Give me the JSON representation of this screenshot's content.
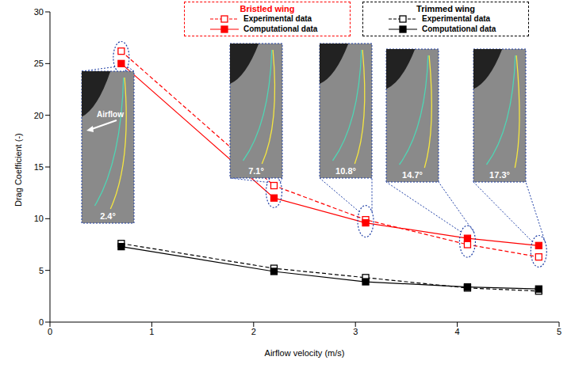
{
  "chart_data": {
    "type": "line",
    "x_label": "Airflow velocity (m/s)",
    "y_label": "Drag Coefficient (-)",
    "x": [
      0.7,
      2.2,
      3.1,
      4.1,
      4.8
    ],
    "xlim": [
      0,
      5
    ],
    "xticks": [
      0,
      1,
      2,
      3,
      4,
      5
    ],
    "ylim": [
      0,
      30
    ],
    "yticks": [
      0,
      5,
      10,
      15,
      20,
      25,
      30
    ],
    "grid": false,
    "series": [
      {
        "name": "Experimental data",
        "group": "Bristled wing",
        "color": "#ff0000",
        "marker": "square_open",
        "line_style": "dashed",
        "values": [
          26.2,
          13.2,
          9.9,
          7.5,
          6.3
        ]
      },
      {
        "name": "Computational data",
        "group": "Bristled wing",
        "color": "#ff0000",
        "marker": "square",
        "line_style": "solid",
        "values": [
          25.0,
          12.0,
          9.6,
          8.1,
          7.4
        ]
      },
      {
        "name": "Experimental data",
        "group": "Trimmed wing",
        "color": "#000000",
        "marker": "square_open",
        "line_style": "dashed",
        "values": [
          7.6,
          5.2,
          4.3,
          3.3,
          3.0
        ]
      },
      {
        "name": "Computational data",
        "group": "Trimmed wing",
        "color": "#000000",
        "marker": "square",
        "line_style": "solid",
        "values": [
          7.3,
          4.9,
          3.9,
          3.4,
          3.2
        ]
      }
    ],
    "annotations": [
      {
        "text": "2.4°",
        "x": 0.7
      },
      {
        "text": "7.1°",
        "x": 2.2
      },
      {
        "text": "10.8°",
        "x": 3.1
      },
      {
        "text": "14.7°",
        "x": 4.1
      },
      {
        "text": "17.3°",
        "x": 4.8
      }
    ],
    "arrow_text": "Airflow"
  }
}
